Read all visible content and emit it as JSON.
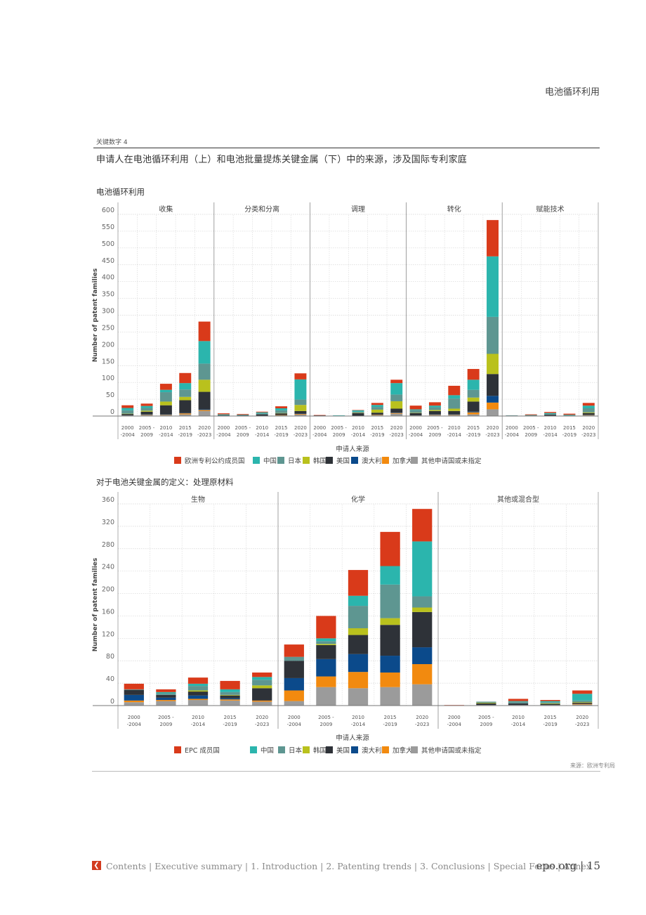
{
  "header": {
    "section_title": "电池循环利用"
  },
  "figure": {
    "label": "关键数字 4",
    "title": "申请人在电池循环利用（上）和电池批量提炼关键金属（下）中的来源，涉及国际专利家庭"
  },
  "colors": {
    "epc": "#d93a1a",
    "china": "#2bb5ad",
    "japan": "#5e9691",
    "korea": "#b9c11d",
    "usa": "#2e3238",
    "australia": "#0b4a8b",
    "canada": "#f28a0f",
    "other": "#9b9b9b"
  },
  "chart_data": [
    {
      "type": "bar",
      "stacked": true,
      "heading": "电池循环利用",
      "ylabel": "Number of patent families",
      "xlabel": "申请人来源",
      "ylim": [
        0,
        600
      ],
      "yticks": [
        0,
        50,
        100,
        150,
        200,
        250,
        300,
        350,
        400,
        450,
        500,
        550,
        600
      ],
      "grid": true,
      "groups": [
        "收集",
        "分类和分离",
        "调理",
        "转化",
        "赋能技术"
      ],
      "periods": [
        [
          "2000",
          "-2004"
        ],
        [
          "2005 -",
          "2009"
        ],
        [
          "2010",
          "-2014"
        ],
        [
          "2015",
          "-2019"
        ],
        [
          "2020",
          "-2023"
        ]
      ],
      "legend": [
        "欧洲专利公约成员国",
        "中国",
        "日本",
        "韩国",
        "美国",
        "澳大利亚",
        "加拿大",
        "其他申请国或未指定"
      ],
      "series_keys": [
        "other",
        "canada",
        "australia",
        "usa",
        "korea",
        "japan",
        "china",
        "epc"
      ],
      "bars": [
        [
          [
            2,
            0,
            0,
            4,
            1,
            10,
            7,
            8
          ],
          [
            3,
            1,
            1,
            8,
            3,
            8,
            6,
            7
          ],
          [
            3,
            1,
            1,
            27,
            11,
            28,
            7,
            18
          ],
          [
            5,
            3,
            1,
            38,
            10,
            22,
            19,
            30
          ],
          [
            15,
            3,
            2,
            52,
            36,
            48,
            67,
            58
          ]
        ],
        [
          [
            1,
            0,
            0,
            1,
            0,
            1,
            2,
            3
          ],
          [
            1,
            0,
            0,
            1,
            0,
            1,
            1,
            2
          ],
          [
            1,
            0,
            0,
            4,
            0,
            3,
            3,
            2
          ],
          [
            2,
            1,
            0,
            5,
            1,
            8,
            6,
            6
          ],
          [
            4,
            2,
            1,
            8,
            18,
            16,
            60,
            18
          ]
        ],
        [
          [
            1,
            0,
            0,
            1,
            0,
            0,
            0,
            1
          ],
          [
            0,
            0,
            0,
            1,
            0,
            0,
            1,
            0
          ],
          [
            1,
            0,
            0,
            8,
            1,
            3,
            4,
            1
          ],
          [
            3,
            1,
            0,
            6,
            9,
            8,
            6,
            6
          ],
          [
            7,
            2,
            1,
            12,
            22,
            20,
            34,
            10
          ]
        ],
        [
          [
            2,
            0,
            0,
            7,
            1,
            8,
            2,
            11
          ],
          [
            3,
            1,
            1,
            10,
            3,
            8,
            5,
            10
          ],
          [
            3,
            1,
            1,
            10,
            7,
            30,
            10,
            28
          ],
          [
            5,
            6,
            2,
            30,
            12,
            23,
            30,
            32
          ],
          [
            20,
            20,
            20,
            65,
            60,
            110,
            180,
            108
          ]
        ],
        [
          [
            0,
            0,
            0,
            1,
            0,
            1,
            0,
            0
          ],
          [
            0,
            0,
            0,
            1,
            0,
            1,
            1,
            2
          ],
          [
            1,
            0,
            0,
            3,
            0,
            2,
            3,
            3
          ],
          [
            0,
            0,
            0,
            1,
            0,
            2,
            1,
            3
          ],
          [
            2,
            1,
            1,
            5,
            2,
            12,
            8,
            8
          ]
        ]
      ]
    },
    {
      "type": "bar",
      "stacked": true,
      "heading": "对于电池关键金属的定义：处理原材料",
      "ylabel": "Number of patent families",
      "xlabel": "申请人来源",
      "ylim": [
        0,
        360
      ],
      "yticks": [
        0,
        40,
        80,
        120,
        160,
        200,
        240,
        280,
        320,
        360
      ],
      "grid": true,
      "groups": [
        "生物",
        "化学",
        "其他或混合型"
      ],
      "periods": [
        [
          "2000",
          "-2004"
        ],
        [
          "2005 -",
          "2009"
        ],
        [
          "2010",
          "-2014"
        ],
        [
          "2015",
          "-2019"
        ],
        [
          "2020",
          "-2023"
        ]
      ],
      "legend": [
        "EPC 成员国",
        "中国",
        "日本",
        "韩国",
        "美国",
        "澳大利亚",
        "加拿大",
        "其他申请国或未指定"
      ],
      "series_keys": [
        "other",
        "canada",
        "australia",
        "usa",
        "korea",
        "japan",
        "china",
        "epc"
      ],
      "bars": [
        [
          [
            6,
            3,
            10,
            9,
            0,
            1,
            0,
            10
          ],
          [
            8,
            2,
            4,
            5,
            0,
            3,
            2,
            5
          ],
          [
            10,
            2,
            6,
            7,
            2,
            8,
            4,
            11
          ],
          [
            9,
            2,
            2,
            5,
            1,
            5,
            5,
            15
          ],
          [
            7,
            2,
            0,
            22,
            5,
            10,
            5,
            8
          ]
        ],
        [
          [
            8,
            19,
            22,
            31,
            0,
            7,
            0,
            22
          ],
          [
            33,
            19,
            31,
            25,
            2,
            5,
            5,
            40
          ],
          [
            31,
            29,
            32,
            34,
            12,
            40,
            18,
            46
          ],
          [
            33,
            26,
            30,
            55,
            12,
            60,
            33,
            61
          ],
          [
            38,
            36,
            30,
            63,
            8,
            20,
            98,
            58
          ]
        ],
        [
          [
            0,
            0,
            0,
            0,
            0,
            0,
            0,
            1
          ],
          [
            1,
            0,
            0,
            3,
            1,
            2,
            0,
            0
          ],
          [
            1,
            0,
            0,
            3,
            0,
            3,
            1,
            4
          ],
          [
            1,
            0,
            0,
            2,
            1,
            2,
            2,
            2
          ],
          [
            2,
            1,
            0,
            2,
            1,
            3,
            12,
            6
          ]
        ]
      ]
    }
  ],
  "source": "来源：欧洲专利局",
  "footer": {
    "nav": "Contents | Executive summary | 1. Introduction | 2. Patenting trends | 3. Conclusions | Special Focus | Annex",
    "site": "epo.org | 15"
  }
}
